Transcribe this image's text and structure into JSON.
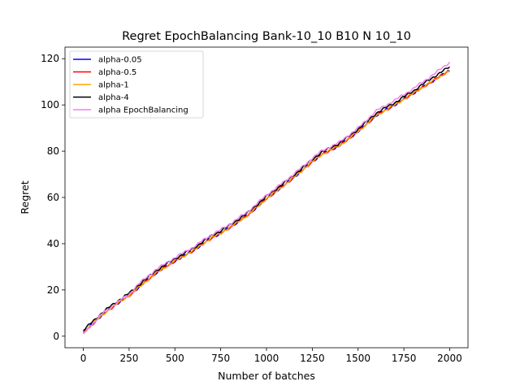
{
  "chart_data": {
    "type": "line",
    "title": "Regret EpochBalancing Bank-10_10 B10 N 10_10",
    "xlabel": "Number of batches",
    "ylabel": "Regret",
    "xlim": [
      -100,
      2100
    ],
    "ylim": [
      -5,
      125
    ],
    "xticks": [
      0,
      250,
      500,
      750,
      1000,
      1250,
      1500,
      1750,
      2000
    ],
    "yticks": [
      0,
      20,
      40,
      60,
      80,
      100,
      120
    ],
    "grid": false,
    "legend_position": "top-left",
    "x": [
      0,
      100,
      200,
      250,
      300,
      400,
      500,
      600,
      700,
      750,
      800,
      900,
      1000,
      1100,
      1200,
      1250,
      1300,
      1400,
      1500,
      1600,
      1700,
      1750,
      1800,
      1900,
      2000
    ],
    "series": [
      {
        "name": "alpha-0.05",
        "color": "#0000ff",
        "values": [
          1.5,
          9,
          15,
          17.5,
          21,
          27.5,
          32.5,
          37,
          42.5,
          44.5,
          47,
          52.5,
          59.5,
          65.5,
          72,
          75.5,
          78.5,
          82.5,
          88.5,
          95.5,
          100,
          102.5,
          105,
          110,
          115
        ]
      },
      {
        "name": "alpha-0.5",
        "color": "#ff0000",
        "values": [
          1.5,
          9,
          15,
          17.5,
          21,
          27.5,
          32.5,
          37,
          42.5,
          44.5,
          47,
          52.5,
          59.5,
          65.5,
          72,
          75.5,
          78.5,
          82.5,
          88.5,
          95.5,
          100,
          102.5,
          105,
          110,
          115
        ]
      },
      {
        "name": "alpha-1",
        "color": "#ffa500",
        "values": [
          1.5,
          9,
          15,
          17.5,
          21,
          27.5,
          32.5,
          37,
          42.5,
          44.5,
          47,
          52.5,
          59.5,
          65.5,
          72,
          75.5,
          78.5,
          82.5,
          88.5,
          95.5,
          100,
          102.5,
          105,
          110,
          115
        ]
      },
      {
        "name": "alpha-4",
        "color": "#000000",
        "values": [
          2.5,
          10,
          16,
          18.5,
          22,
          28.5,
          33.5,
          38,
          43.5,
          45.5,
          48,
          53.5,
          60.5,
          66.5,
          73,
          76.5,
          79.5,
          83.5,
          89.5,
          96.5,
          101,
          103.5,
          106,
          111.5,
          116.5
        ]
      },
      {
        "name": "alpha EpochBalancing",
        "color": "#ee82ee",
        "values": [
          1,
          9.5,
          15.5,
          18,
          22.5,
          29,
          34,
          38.5,
          44,
          46,
          48.5,
          54,
          61,
          67,
          73.5,
          77,
          80,
          84,
          90,
          97.5,
          102,
          104.5,
          107,
          112.5,
          118.5
        ]
      }
    ]
  }
}
